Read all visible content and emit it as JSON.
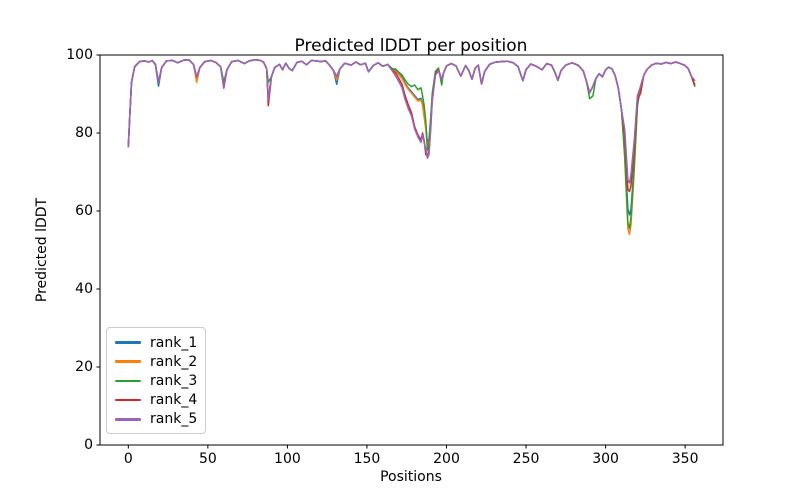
{
  "title": "Predicted lDDT per position",
  "axes": {
    "xlabel": "Positions",
    "ylabel": "Predicted lDDT"
  },
  "colors": {
    "rank_1": "#1f77b4",
    "rank_2": "#ff7f0e",
    "rank_3": "#2ca02c",
    "rank_4": "#d62728",
    "rank_5": "#9467bd",
    "spine": "#000000",
    "legend_border": "#cccccc",
    "background": "#ffffff"
  },
  "chart_data": {
    "type": "line",
    "title": "Predicted lDDT per position",
    "xlabel": "Positions",
    "ylabel": "Predicted lDDT",
    "xlim": [
      -17.8,
      373.8
    ],
    "ylim": [
      0,
      100
    ],
    "x_ticks": [
      0,
      50,
      100,
      150,
      200,
      250,
      300,
      350
    ],
    "y_ticks": [
      0,
      20,
      40,
      60,
      80,
      100
    ],
    "grid": false,
    "legend_position": "lower left",
    "x": [
      0,
      1,
      2,
      4,
      7,
      10,
      13,
      15,
      17,
      19,
      21,
      24,
      28,
      31,
      35,
      38,
      41,
      43,
      45,
      48,
      52,
      55,
      58,
      60,
      62,
      65,
      69,
      73,
      76,
      80,
      83,
      85,
      87,
      88,
      90,
      92,
      95,
      97,
      99,
      101,
      103,
      106,
      109,
      112,
      115,
      118,
      121,
      124,
      127,
      129,
      131,
      133,
      136,
      140,
      143,
      146,
      149,
      151,
      154,
      157,
      160,
      163,
      166,
      168,
      170,
      172,
      174,
      176,
      178,
      180,
      182,
      184,
      185,
      186,
      187,
      188,
      189,
      190,
      191,
      193,
      195,
      197,
      198,
      200,
      203,
      206,
      209,
      212,
      214,
      216,
      218,
      220,
      222,
      224,
      227,
      230,
      234,
      238,
      242,
      245,
      248,
      250,
      253,
      257,
      260,
      263,
      266,
      268,
      270,
      272,
      275,
      279,
      283,
      286,
      288,
      290,
      292,
      294,
      296,
      298,
      300,
      302,
      304,
      306,
      308,
      310,
      312,
      314,
      315,
      316,
      318,
      320,
      322,
      324,
      326,
      329,
      332,
      335,
      338,
      341,
      344,
      347,
      350,
      352,
      354,
      356
    ],
    "series": [
      {
        "name": "rank_1",
        "color": "#1f77b4",
        "values": [
          76.5,
          85.0,
          93.0,
          97.0,
          98.3,
          98.5,
          98.2,
          98.6,
          97.6,
          92.0,
          96.8,
          98.5,
          98.6,
          98.0,
          98.7,
          98.8,
          97.6,
          94.3,
          96.8,
          98.3,
          98.6,
          98.1,
          97.0,
          93.0,
          96.2,
          98.3,
          98.6,
          97.8,
          98.5,
          98.8,
          98.6,
          98.2,
          96.5,
          89.0,
          94.5,
          96.8,
          97.6,
          96.2,
          97.9,
          96.6,
          96.0,
          98.1,
          98.4,
          97.5,
          98.6,
          98.5,
          98.3,
          98.5,
          97.1,
          96.0,
          92.5,
          96.4,
          97.9,
          97.4,
          98.2,
          97.5,
          97.9,
          95.7,
          97.3,
          98.0,
          97.1,
          97.6,
          96.3,
          96.0,
          95.2,
          94.3,
          92.8,
          91.5,
          90.6,
          89.6,
          88.6,
          88.9,
          87.5,
          85.0,
          82.0,
          77.5,
          78.5,
          83.5,
          89.0,
          95.5,
          96.3,
          93.6,
          95.2,
          97.2,
          97.8,
          97.2,
          94.6,
          97.3,
          96.0,
          93.8,
          96.6,
          97.4,
          92.6,
          95.8,
          97.6,
          98.1,
          98.3,
          98.4,
          98.0,
          97.0,
          93.4,
          96.2,
          97.7,
          97.0,
          96.2,
          97.8,
          97.4,
          95.7,
          93.5,
          96.0,
          97.4,
          98.0,
          97.3,
          95.9,
          93.2,
          90.3,
          92.0,
          94.0,
          95.2,
          94.4,
          96.2,
          96.9,
          96.4,
          94.8,
          91.5,
          86.0,
          76.0,
          60.5,
          59.0,
          60.5,
          72.0,
          88.0,
          92.0,
          94.8,
          96.3,
          97.4,
          97.9,
          97.7,
          98.1,
          97.8,
          98.2,
          97.8,
          97.3,
          96.5,
          94.5,
          92.3
        ]
      },
      {
        "name": "rank_2",
        "color": "#ff7f0e",
        "values": [
          76.5,
          85.0,
          93.0,
          97.0,
          98.3,
          98.5,
          98.2,
          98.6,
          97.6,
          93.0,
          96.8,
          98.5,
          98.6,
          98.0,
          98.7,
          98.8,
          97.6,
          93.0,
          96.8,
          98.3,
          98.6,
          98.1,
          97.0,
          92.6,
          96.2,
          98.3,
          98.6,
          97.8,
          98.5,
          98.8,
          98.6,
          98.2,
          96.5,
          89.0,
          94.5,
          96.8,
          97.6,
          96.2,
          97.9,
          96.6,
          96.0,
          98.1,
          98.4,
          97.5,
          98.6,
          98.5,
          98.3,
          98.5,
          97.1,
          96.0,
          93.6,
          96.4,
          97.9,
          97.4,
          98.2,
          97.5,
          97.9,
          95.7,
          97.3,
          98.0,
          97.1,
          97.6,
          96.2,
          95.8,
          95.0,
          94.0,
          92.5,
          91.2,
          90.2,
          89.2,
          88.2,
          88.5,
          87.0,
          84.0,
          81.0,
          76.5,
          78.0,
          83.0,
          88.5,
          95.0,
          96.1,
          93.6,
          95.2,
          97.2,
          97.8,
          97.2,
          94.6,
          97.3,
          96.0,
          93.8,
          96.6,
          97.4,
          92.6,
          95.8,
          97.6,
          98.1,
          98.3,
          98.4,
          98.0,
          97.0,
          93.4,
          96.2,
          97.7,
          97.0,
          96.2,
          97.8,
          97.4,
          95.7,
          93.5,
          96.0,
          97.4,
          98.0,
          97.3,
          95.9,
          93.2,
          90.3,
          92.0,
          94.0,
          95.2,
          94.4,
          96.2,
          96.9,
          96.4,
          94.8,
          91.5,
          86.0,
          73.5,
          55.5,
          54.0,
          56.5,
          70.0,
          86.8,
          92.0,
          94.8,
          96.3,
          97.4,
          97.9,
          97.7,
          98.1,
          97.8,
          98.2,
          97.8,
          97.3,
          96.5,
          94.5,
          92.3
        ]
      },
      {
        "name": "rank_3",
        "color": "#2ca02c",
        "values": [
          76.5,
          85.0,
          93.0,
          97.0,
          98.3,
          98.5,
          98.2,
          98.6,
          97.6,
          93.0,
          96.8,
          98.5,
          98.6,
          98.0,
          98.7,
          98.8,
          97.6,
          94.3,
          96.8,
          98.3,
          98.6,
          98.1,
          97.0,
          93.0,
          96.2,
          98.3,
          98.6,
          97.8,
          98.5,
          98.8,
          98.6,
          98.2,
          96.5,
          93.0,
          94.5,
          96.8,
          97.6,
          96.2,
          97.9,
          96.6,
          96.0,
          98.1,
          98.4,
          97.5,
          98.6,
          98.5,
          98.3,
          98.5,
          97.1,
          96.0,
          94.5,
          96.4,
          97.9,
          97.4,
          98.2,
          97.5,
          97.9,
          95.7,
          97.3,
          98.0,
          97.1,
          97.6,
          96.5,
          96.4,
          95.6,
          94.9,
          93.6,
          92.5,
          91.9,
          92.3,
          91.1,
          91.6,
          89.5,
          87.0,
          83.0,
          75.5,
          77.0,
          83.0,
          90.0,
          95.8,
          96.7,
          92.3,
          95.2,
          97.2,
          97.8,
          97.2,
          94.6,
          97.3,
          96.0,
          93.8,
          96.6,
          97.4,
          92.6,
          95.8,
          97.6,
          98.1,
          98.3,
          98.4,
          98.0,
          97.0,
          93.4,
          96.2,
          97.7,
          97.0,
          96.2,
          97.8,
          97.4,
          95.7,
          93.5,
          96.0,
          97.4,
          98.0,
          97.3,
          95.9,
          93.2,
          88.8,
          89.5,
          94.0,
          95.2,
          94.4,
          96.2,
          96.9,
          96.4,
          94.8,
          91.5,
          86.0,
          74.5,
          57.0,
          55.5,
          58.5,
          71.5,
          87.0,
          92.0,
          94.8,
          96.3,
          97.4,
          97.9,
          97.7,
          98.1,
          97.8,
          98.2,
          97.8,
          97.3,
          96.5,
          94.5,
          92.0
        ]
      },
      {
        "name": "rank_4",
        "color": "#d62728",
        "values": [
          76.5,
          85.0,
          93.0,
          97.0,
          98.3,
          98.5,
          98.2,
          98.6,
          97.6,
          93.0,
          96.8,
          98.5,
          98.6,
          98.0,
          98.7,
          98.8,
          97.6,
          94.3,
          96.8,
          98.3,
          98.6,
          98.1,
          97.0,
          91.5,
          96.2,
          98.3,
          98.6,
          97.8,
          98.5,
          98.8,
          98.6,
          98.2,
          96.5,
          87.0,
          94.5,
          96.8,
          97.6,
          96.2,
          97.9,
          96.6,
          96.0,
          98.1,
          98.4,
          97.5,
          98.6,
          98.5,
          98.3,
          98.5,
          97.1,
          96.0,
          94.5,
          96.4,
          97.9,
          97.4,
          98.2,
          97.5,
          97.9,
          95.7,
          97.3,
          98.0,
          97.1,
          97.6,
          96.1,
          95.4,
          94.0,
          92.5,
          89.6,
          87.2,
          85.2,
          81.6,
          79.5,
          78.2,
          80.0,
          78.0,
          74.5,
          74.0,
          75.5,
          81.0,
          88.5,
          95.2,
          96.2,
          93.6,
          95.2,
          97.2,
          97.8,
          97.2,
          94.6,
          97.3,
          96.0,
          93.8,
          96.6,
          97.4,
          92.6,
          95.8,
          97.6,
          98.1,
          98.3,
          98.4,
          98.0,
          97.0,
          93.4,
          96.2,
          97.7,
          97.0,
          96.2,
          97.8,
          97.4,
          95.7,
          93.5,
          96.0,
          97.4,
          98.0,
          97.3,
          95.9,
          93.2,
          90.3,
          92.0,
          94.0,
          95.2,
          94.4,
          96.2,
          96.9,
          96.4,
          94.8,
          91.5,
          86.0,
          79.5,
          65.5,
          65.0,
          66.5,
          76.0,
          88.5,
          90.2,
          94.8,
          96.3,
          97.4,
          97.9,
          97.7,
          98.1,
          97.8,
          98.2,
          97.8,
          97.3,
          96.5,
          94.5,
          92.3
        ]
      },
      {
        "name": "rank_5",
        "color": "#9467bd",
        "values": [
          76.5,
          85.0,
          93.0,
          97.0,
          98.3,
          98.5,
          98.2,
          98.6,
          97.6,
          93.0,
          96.8,
          98.5,
          98.6,
          98.0,
          98.7,
          98.8,
          97.6,
          94.3,
          96.8,
          98.3,
          98.6,
          98.1,
          97.0,
          91.8,
          96.2,
          98.3,
          98.6,
          97.8,
          98.5,
          98.8,
          98.6,
          98.2,
          96.5,
          88.5,
          94.5,
          96.8,
          97.6,
          96.2,
          97.9,
          96.6,
          96.0,
          98.1,
          98.4,
          97.5,
          98.6,
          98.5,
          98.3,
          98.5,
          97.1,
          96.0,
          94.5,
          96.4,
          97.9,
          97.4,
          98.2,
          97.5,
          97.9,
          95.7,
          97.3,
          98.0,
          97.1,
          97.6,
          95.9,
          94.6,
          93.2,
          91.6,
          88.6,
          86.2,
          84.4,
          81.0,
          79.0,
          77.6,
          79.5,
          77.5,
          76.0,
          73.5,
          74.5,
          80.5,
          88.0,
          94.8,
          96.0,
          93.6,
          95.2,
          97.2,
          97.8,
          97.2,
          94.6,
          97.3,
          96.0,
          93.8,
          96.6,
          97.4,
          92.6,
          95.8,
          97.6,
          98.1,
          98.3,
          98.4,
          98.0,
          97.0,
          93.4,
          96.2,
          97.7,
          97.0,
          96.2,
          97.8,
          97.4,
          95.7,
          93.5,
          96.0,
          97.4,
          98.0,
          97.3,
          95.9,
          93.2,
          90.3,
          92.0,
          94.0,
          95.2,
          94.4,
          96.2,
          96.9,
          96.4,
          94.8,
          91.5,
          86.0,
          81.0,
          68.0,
          67.2,
          69.5,
          78.0,
          89.5,
          92.0,
          94.8,
          96.3,
          97.4,
          97.9,
          97.7,
          98.1,
          97.8,
          98.2,
          97.8,
          97.3,
          96.5,
          94.5,
          93.5
        ]
      }
    ]
  }
}
